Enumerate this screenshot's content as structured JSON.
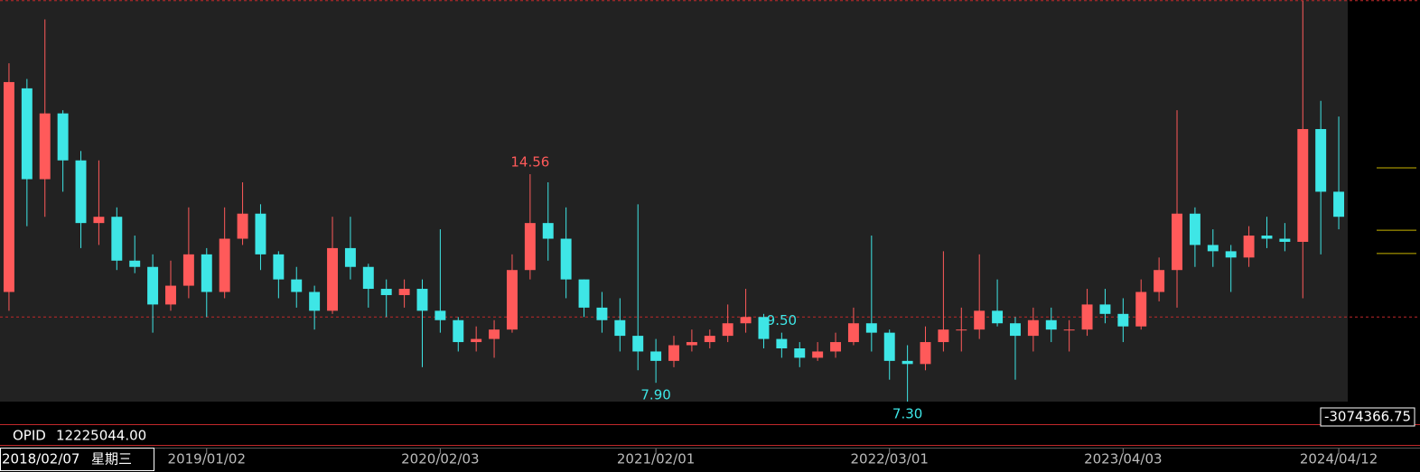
{
  "chart_data": {
    "type": "candlestick",
    "categories": [
      "2018/02/07",
      null,
      null,
      null,
      null,
      null,
      null,
      null,
      null,
      null,
      null,
      "2019/01/02",
      null,
      null,
      null,
      null,
      null,
      null,
      null,
      null,
      null,
      null,
      null,
      null,
      "2020/02/03",
      null,
      null,
      null,
      null,
      null,
      null,
      null,
      null,
      null,
      null,
      null,
      "2021/02/01",
      null,
      null,
      null,
      null,
      null,
      null,
      null,
      null,
      null,
      null,
      null,
      null,
      "2022/03/01",
      null,
      null,
      null,
      null,
      null,
      null,
      null,
      null,
      null,
      null,
      null,
      null,
      "2023/04/03",
      null,
      null,
      null,
      null,
      null,
      null,
      null,
      null,
      null,
      null,
      null,
      "2024/04/12"
    ],
    "weekday": "星期三",
    "open": [
      10.8,
      17.3,
      14.4,
      16.5,
      15.0,
      13.0,
      13.2,
      11.8,
      11.6,
      10.4,
      11.0,
      12.0,
      10.8,
      12.5,
      13.3,
      12.0,
      11.2,
      10.8,
      10.2,
      12.2,
      11.6,
      10.9,
      10.7,
      10.9,
      10.2,
      9.9,
      9.2,
      9.3,
      9.6,
      11.5,
      13.0,
      12.5,
      11.2,
      10.3,
      9.9,
      9.4,
      8.9,
      8.6,
      9.1,
      9.2,
      9.4,
      9.8,
      10.0,
      9.3,
      9.0,
      8.7,
      8.9,
      9.2,
      9.8,
      9.5,
      8.6,
      8.5,
      9.2,
      9.6,
      9.6,
      10.2,
      9.8,
      9.4,
      9.9,
      9.6,
      9.6,
      10.4,
      10.1,
      9.7,
      10.8,
      11.5,
      13.3,
      12.3,
      12.1,
      11.9,
      12.6,
      12.5,
      12.4,
      16.0,
      14.0
    ],
    "high": [
      18.1,
      17.6,
      19.5,
      16.6,
      15.3,
      15.0,
      13.5,
      12.6,
      12.0,
      11.8,
      13.5,
      12.2,
      13.5,
      14.3,
      13.6,
      12.1,
      11.6,
      11.0,
      13.2,
      13.2,
      11.7,
      11.2,
      11.2,
      11.2,
      12.8,
      10.0,
      9.7,
      9.9,
      12.0,
      14.56,
      14.3,
      13.5,
      11.2,
      10.8,
      10.6,
      13.6,
      9.3,
      9.4,
      9.6,
      9.6,
      10.4,
      10.9,
      10.1,
      9.5,
      9.2,
      9.2,
      9.5,
      10.3,
      12.6,
      9.6,
      9.1,
      9.7,
      12.1,
      10.3,
      12.0,
      11.2,
      10.0,
      10.3,
      10.3,
      9.9,
      10.9,
      10.9,
      10.6,
      11.2,
      11.9,
      16.6,
      13.5,
      12.8,
      12.3,
      12.9,
      13.2,
      13.0,
      20.1,
      16.9,
      16.4
    ],
    "low": [
      10.2,
      12.9,
      13.2,
      14.0,
      12.2,
      12.3,
      11.5,
      11.4,
      9.5,
      10.2,
      10.6,
      10.0,
      10.6,
      12.3,
      11.5,
      10.6,
      10.3,
      9.6,
      10.1,
      11.2,
      10.3,
      10.0,
      10.3,
      8.4,
      9.5,
      8.9,
      8.9,
      8.7,
      9.5,
      11.2,
      11.8,
      10.6,
      10.0,
      9.5,
      8.9,
      8.3,
      7.9,
      8.4,
      8.9,
      9.0,
      9.2,
      9.5,
      9.0,
      8.7,
      8.4,
      8.6,
      8.7,
      9.1,
      8.9,
      8.0,
      7.3,
      8.3,
      8.9,
      8.9,
      9.3,
      9.7,
      8.0,
      8.9,
      9.2,
      8.9,
      9.4,
      9.8,
      9.2,
      9.6,
      10.5,
      10.3,
      11.6,
      11.6,
      10.8,
      11.6,
      12.2,
      12.1,
      10.6,
      12.0,
      12.8
    ],
    "close": [
      17.5,
      14.4,
      16.5,
      15.0,
      13.0,
      13.2,
      11.8,
      11.6,
      10.4,
      11.0,
      12.0,
      10.8,
      12.5,
      13.3,
      12.0,
      11.2,
      10.8,
      10.2,
      12.2,
      11.6,
      10.9,
      10.7,
      10.9,
      10.2,
      9.9,
      9.2,
      9.3,
      9.6,
      11.5,
      13.0,
      12.5,
      11.2,
      10.3,
      9.9,
      9.4,
      8.9,
      8.6,
      9.1,
      9.2,
      9.4,
      9.8,
      10.0,
      9.3,
      9.0,
      8.7,
      8.9,
      9.2,
      9.8,
      9.5,
      8.6,
      8.5,
      9.2,
      9.6,
      9.6,
      10.2,
      9.8,
      9.4,
      9.9,
      9.6,
      9.6,
      10.4,
      10.1,
      9.7,
      10.8,
      11.5,
      13.3,
      12.3,
      12.1,
      11.9,
      12.6,
      12.5,
      12.4,
      16.0,
      14.0,
      13.2
    ],
    "up_color": "#ff5a5a",
    "down_color": "#3ee6e6",
    "ylim": [
      7.3,
      20.12
    ],
    "ref_lines": [
      20.1,
      10.0
    ],
    "ref_line_color": "#c0282a",
    "price_markers": [
      14.76,
      12.77,
      12.03
    ],
    "price_marker_color": "#c8b400",
    "annotations": [
      {
        "value": 14.56,
        "label": "14.56",
        "color": "#ff5a5a"
      },
      {
        "value": 9.5,
        "label": "9.50",
        "color": "#3ee6e6"
      },
      {
        "value": 7.9,
        "label": "7.90",
        "color": "#3ee6e6"
      },
      {
        "value": 7.3,
        "label": "7.30",
        "color": "#3ee6e6"
      }
    ],
    "cursor_value": -3074366.75,
    "indicator": {
      "name": "OPID",
      "value": {
        "value": 12225044,
        "label": "12225044.00"
      }
    }
  }
}
